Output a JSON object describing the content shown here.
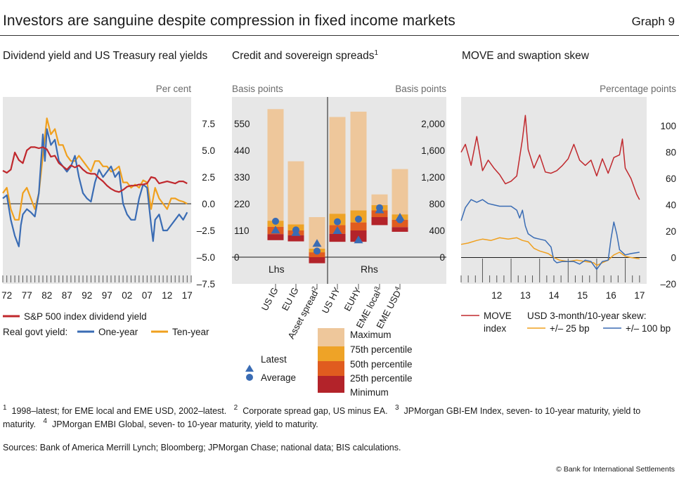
{
  "header": {
    "title": "Investors are sanguine despite compression in fixed income markets",
    "graph_number": "Graph 9"
  },
  "panels": {
    "p1": {
      "title": "Dividend yield and US Treasury real yields",
      "units": "Per cent"
    },
    "p2": {
      "title": "Credit and sovereign spreads",
      "title_note": "1",
      "units_left": "Basis points",
      "units_right": "Basis points",
      "lhs_label": "Lhs",
      "rhs_label": "Rhs"
    },
    "p3": {
      "title": "MOVE and swaption skew",
      "units": "Percentage points"
    }
  },
  "legends": {
    "p1": {
      "sp500": "S&P 500 index dividend yield",
      "real_govt_prefix": "Real govt yield:",
      "one_year": "One-year",
      "ten_year": "Ten-year"
    },
    "p2": {
      "latest": "Latest",
      "average": "Average",
      "maximum": "Maximum",
      "p75": "75th percentile",
      "p50": "50th percentile",
      "p25": "25th percentile",
      "minimum": "Minimum"
    },
    "p3": {
      "move_line1": "MOVE",
      "move_line2": "index",
      "skew_header": "USD 3-month/10-year skew:",
      "skew25": "+/– 25 bp",
      "skew100": "+/– 100 bp"
    }
  },
  "colors": {
    "sp500": "#c0282d",
    "one_year": "#3a6cb4",
    "ten_year": "#f0a01e",
    "maximum": "#eec79b",
    "p75": "#eea327",
    "p50": "#e05c1f",
    "p25": "#b3232a",
    "marker": "#3a6cb4",
    "move": "#c0282d",
    "skew25": "#f0a01e",
    "skew100": "#3a6cb4"
  },
  "footnotes": {
    "n1": "1998–latest; for EME local and EME USD, 2002–latest.",
    "n2": "Corporate spread gap, US minus EA.",
    "n3": "JPMorgan GBI-EM Index, seven- to 10-year maturity, yield to maturity.",
    "n4": "JPMorgan EMBI Global, seven- to 10-year maturity, yield to maturity."
  },
  "sources": "Sources: Bank of America Merrill Lynch; Bloomberg; JPMorgan Chase; national data; BIS calculations.",
  "copyright": "© Bank for International Settlements",
  "chart_data": [
    {
      "type": "line",
      "title": "Dividend yield and US Treasury real yields",
      "ylabel": "Per cent",
      "xlim": [
        1971,
        2018
      ],
      "ylim": [
        -7.5,
        10
      ],
      "y_ticks": [
        7.5,
        5.0,
        2.5,
        0.0,
        -2.5,
        -5.0,
        -7.5
      ],
      "y_tick_labels": [
        "7.5",
        "5.0",
        "2.5",
        "0.0",
        "–2.5",
        "–5.0",
        "–7.5"
      ],
      "x_ticks": [
        1972,
        1977,
        1982,
        1987,
        1992,
        1997,
        2002,
        2007,
        2012,
        2017
      ],
      "x_tick_labels": [
        "72",
        "77",
        "82",
        "87",
        "92",
        "97",
        "02",
        "07",
        "12",
        "17"
      ],
      "series": [
        {
          "name": "S&P 500 index dividend yield",
          "color": "#c0282d",
          "x": [
            1971,
            1972,
            1973,
            1974,
            1975,
            1976,
            1977,
            1978,
            1979,
            1980,
            1981,
            1982,
            1983,
            1984,
            1985,
            1986,
            1987,
            1988,
            1989,
            1990,
            1991,
            1992,
            1993,
            1994,
            1995,
            1996,
            1997,
            1998,
            1999,
            2000,
            2001,
            2002,
            2003,
            2004,
            2005,
            2006,
            2007,
            2008,
            2009,
            2010,
            2011,
            2012,
            2013,
            2014,
            2015,
            2016,
            2017
          ],
          "y": [
            3.1,
            2.9,
            3.2,
            4.8,
            4.1,
            3.8,
            5.0,
            5.3,
            5.3,
            5.2,
            5.3,
            5.1,
            4.4,
            4.5,
            3.8,
            3.5,
            3.2,
            3.6,
            3.4,
            3.6,
            3.2,
            2.9,
            2.8,
            2.8,
            2.4,
            2.1,
            1.7,
            1.4,
            1.2,
            1.1,
            1.3,
            1.6,
            1.7,
            1.7,
            1.8,
            1.8,
            1.9,
            2.5,
            2.4,
            1.9,
            2.0,
            2.1,
            2.0,
            1.9,
            2.1,
            2.1,
            1.9
          ]
        },
        {
          "name": "One-year",
          "color": "#3a6cb4",
          "x": [
            1971,
            1972,
            1973,
            1974,
            1975,
            1975.5,
            1976,
            1977,
            1978,
            1979,
            1980,
            1981,
            1981.5,
            1982,
            1983,
            1984,
            1985,
            1986,
            1987,
            1988,
            1989,
            1990,
            1991,
            1992,
            1993,
            1994,
            1995,
            1996,
            1997,
            1998,
            1999,
            2000,
            2001,
            2002,
            2003,
            2004,
            2005,
            2006,
            2007,
            2008,
            2008.5,
            2009,
            2010,
            2011,
            2012,
            2013,
            2014,
            2015,
            2016,
            2017
          ],
          "y": [
            0.5,
            0.8,
            -1.5,
            -3.0,
            -4.0,
            -2.0,
            -1.0,
            -0.5,
            -0.8,
            -1.2,
            1.0,
            6.5,
            4.0,
            7.0,
            5.5,
            6.0,
            4.0,
            3.5,
            3.0,
            3.5,
            4.5,
            2.5,
            1.0,
            0.5,
            0.2,
            2.0,
            3.2,
            2.5,
            3.0,
            3.5,
            2.5,
            3.0,
            0.0,
            -1.0,
            -1.5,
            -1.5,
            0.5,
            1.8,
            1.5,
            -2.0,
            -3.5,
            -1.5,
            -1.0,
            -2.5,
            -2.5,
            -2.0,
            -1.5,
            -1.0,
            -1.5,
            -0.8
          ]
        },
        {
          "name": "Ten-year",
          "color": "#f0a01e",
          "x": [
            1971,
            1972,
            1973,
            1974,
            1975,
            1976,
            1977,
            1978,
            1979,
            1980,
            1981,
            1982,
            1983,
            1984,
            1985,
            1986,
            1987,
            1988,
            1989,
            1990,
            1991,
            1992,
            1993,
            1994,
            1995,
            1996,
            1997,
            1998,
            1999,
            2000,
            2001,
            2002,
            2003,
            2004,
            2005,
            2006,
            2007,
            2008,
            2009,
            2010,
            2011,
            2012,
            2013,
            2014,
            2015,
            2016,
            2017
          ],
          "y": [
            1.0,
            1.5,
            -0.5,
            -1.5,
            -1.5,
            1.0,
            1.5,
            0.5,
            -0.5,
            1.0,
            4.5,
            8.0,
            6.5,
            7.0,
            5.5,
            5.5,
            4.5,
            4.0,
            4.0,
            4.5,
            4.0,
            3.5,
            3.0,
            4.0,
            4.0,
            3.5,
            3.5,
            3.0,
            3.2,
            3.5,
            2.0,
            2.0,
            1.5,
            1.8,
            1.5,
            2.2,
            2.0,
            -0.5,
            1.5,
            0.5,
            0.0,
            -0.5,
            0.5,
            0.5,
            0.3,
            0.2,
            0.0
          ]
        }
      ]
    },
    {
      "type": "bar",
      "title": "Credit and sovereign spreads",
      "ylabel_left": "Basis points",
      "ylabel_right": "Basis points",
      "ylim_left": [
        -110,
        660
      ],
      "y_ticks_left": [
        0,
        110,
        220,
        330,
        440,
        550
      ],
      "ylim_right": [
        -400,
        2400
      ],
      "y_ticks_right": [
        0,
        400,
        800,
        1200,
        1600,
        2000
      ],
      "y_tick_labels_right": [
        "0",
        "400",
        "800",
        "1,200",
        "1,600",
        "2,000"
      ],
      "categories": [
        "US IG",
        "EU IG",
        "Asset spread",
        "US HY",
        "EUHY",
        "EME local",
        "EME USD"
      ],
      "category_notes": [
        "",
        "",
        "2",
        "",
        "",
        "3",
        "4"
      ],
      "axis": [
        "Lhs",
        "Lhs",
        "Lhs",
        "Rhs",
        "Rhs",
        "Rhs",
        "Rhs"
      ],
      "series": [
        {
          "name": "Minimum",
          "values": [
            70,
            65,
            -25,
            230,
            230,
            480,
            380
          ]
        },
        {
          "name": "25th percentile",
          "values": [
            95,
            90,
            0,
            350,
            400,
            600,
            450
          ]
        },
        {
          "name": "50th percentile",
          "values": [
            125,
            110,
            20,
            480,
            520,
            700,
            560
          ]
        },
        {
          "name": "75th percentile",
          "values": [
            150,
            135,
            35,
            650,
            700,
            780,
            640
          ]
        },
        {
          "name": "Maximum",
          "values": [
            610,
            395,
            165,
            2100,
            2180,
            940,
            1320
          ]
        },
        {
          "name": "Average",
          "values": [
            148,
            112,
            25,
            530,
            570,
            740,
            560
          ]
        },
        {
          "name": "Latest",
          "values": [
            112,
            102,
            57,
            400,
            260,
            710,
            600
          ]
        }
      ]
    },
    {
      "type": "line",
      "title": "MOVE and swaption skew",
      "ylabel": "Percentage points",
      "xlim": [
        2011.25,
        2017.75
      ],
      "ylim": [
        -20,
        122
      ],
      "y_ticks": [
        100,
        80,
        60,
        40,
        20,
        0,
        -20
      ],
      "y_tick_labels": [
        "100",
        "80",
        "60",
        "40",
        "20",
        "0",
        "–20"
      ],
      "x_ticks": [
        2012,
        2013,
        2014,
        2015,
        2016,
        2017
      ],
      "x_tick_labels": [
        "12",
        "13",
        "14",
        "15",
        "16",
        "17"
      ],
      "series": [
        {
          "name": "MOVE index",
          "color": "#c0282d",
          "x": [
            2011.25,
            2011.4,
            2011.6,
            2011.8,
            2012.0,
            2012.2,
            2012.4,
            2012.6,
            2012.8,
            2013.0,
            2013.2,
            2013.4,
            2013.5,
            2013.6,
            2013.8,
            2014.0,
            2014.2,
            2014.4,
            2014.6,
            2014.8,
            2015.0,
            2015.2,
            2015.4,
            2015.6,
            2015.8,
            2016.0,
            2016.2,
            2016.4,
            2016.6,
            2016.8,
            2016.9,
            2017.0,
            2017.2,
            2017.4,
            2017.5
          ],
          "y": [
            80,
            86,
            70,
            92,
            66,
            74,
            68,
            63,
            56,
            58,
            62,
            90,
            108,
            82,
            68,
            78,
            65,
            64,
            66,
            70,
            75,
            86,
            74,
            70,
            74,
            62,
            75,
            64,
            76,
            78,
            90,
            68,
            60,
            48,
            44
          ]
        },
        {
          "name": "+/– 25 bp",
          "color": "#f0a01e",
          "x": [
            2011.25,
            2011.5,
            2011.8,
            2012.0,
            2012.3,
            2012.6,
            2012.9,
            2013.2,
            2013.4,
            2013.6,
            2013.8,
            2014.0,
            2014.3,
            2014.5,
            2014.7,
            2015.0,
            2015.3,
            2015.6,
            2015.9,
            2016.0,
            2016.2,
            2016.4,
            2016.6,
            2016.8,
            2017.0,
            2017.2,
            2017.5
          ],
          "y": [
            10,
            11,
            13,
            14,
            13,
            15,
            14,
            15,
            13,
            12,
            7,
            5,
            3,
            0,
            -2,
            -3,
            -2,
            -3,
            -4,
            -6,
            -4,
            -2,
            2,
            4,
            1,
            0,
            -1
          ]
        },
        {
          "name": "+/– 100 bp",
          "color": "#3a6cb4",
          "x": [
            2011.25,
            2011.4,
            2011.6,
            2011.8,
            2012.0,
            2012.2,
            2012.4,
            2012.6,
            2012.8,
            2013.0,
            2013.2,
            2013.3,
            2013.4,
            2013.5,
            2013.6,
            2013.8,
            2014.0,
            2014.2,
            2014.4,
            2014.5,
            2014.6,
            2014.8,
            2015.0,
            2015.2,
            2015.4,
            2015.6,
            2015.8,
            2016.0,
            2016.2,
            2016.4,
            2016.5,
            2016.6,
            2016.7,
            2016.8,
            2017.0,
            2017.2,
            2017.5
          ],
          "y": [
            28,
            38,
            44,
            42,
            44,
            41,
            40,
            39,
            39,
            39,
            36,
            30,
            36,
            24,
            18,
            15,
            14,
            13,
            8,
            -2,
            -4,
            -3,
            -3,
            -3,
            -5,
            -2,
            -3,
            -9,
            -3,
            -2,
            14,
            27,
            18,
            6,
            2,
            3,
            4
          ]
        }
      ]
    }
  ]
}
